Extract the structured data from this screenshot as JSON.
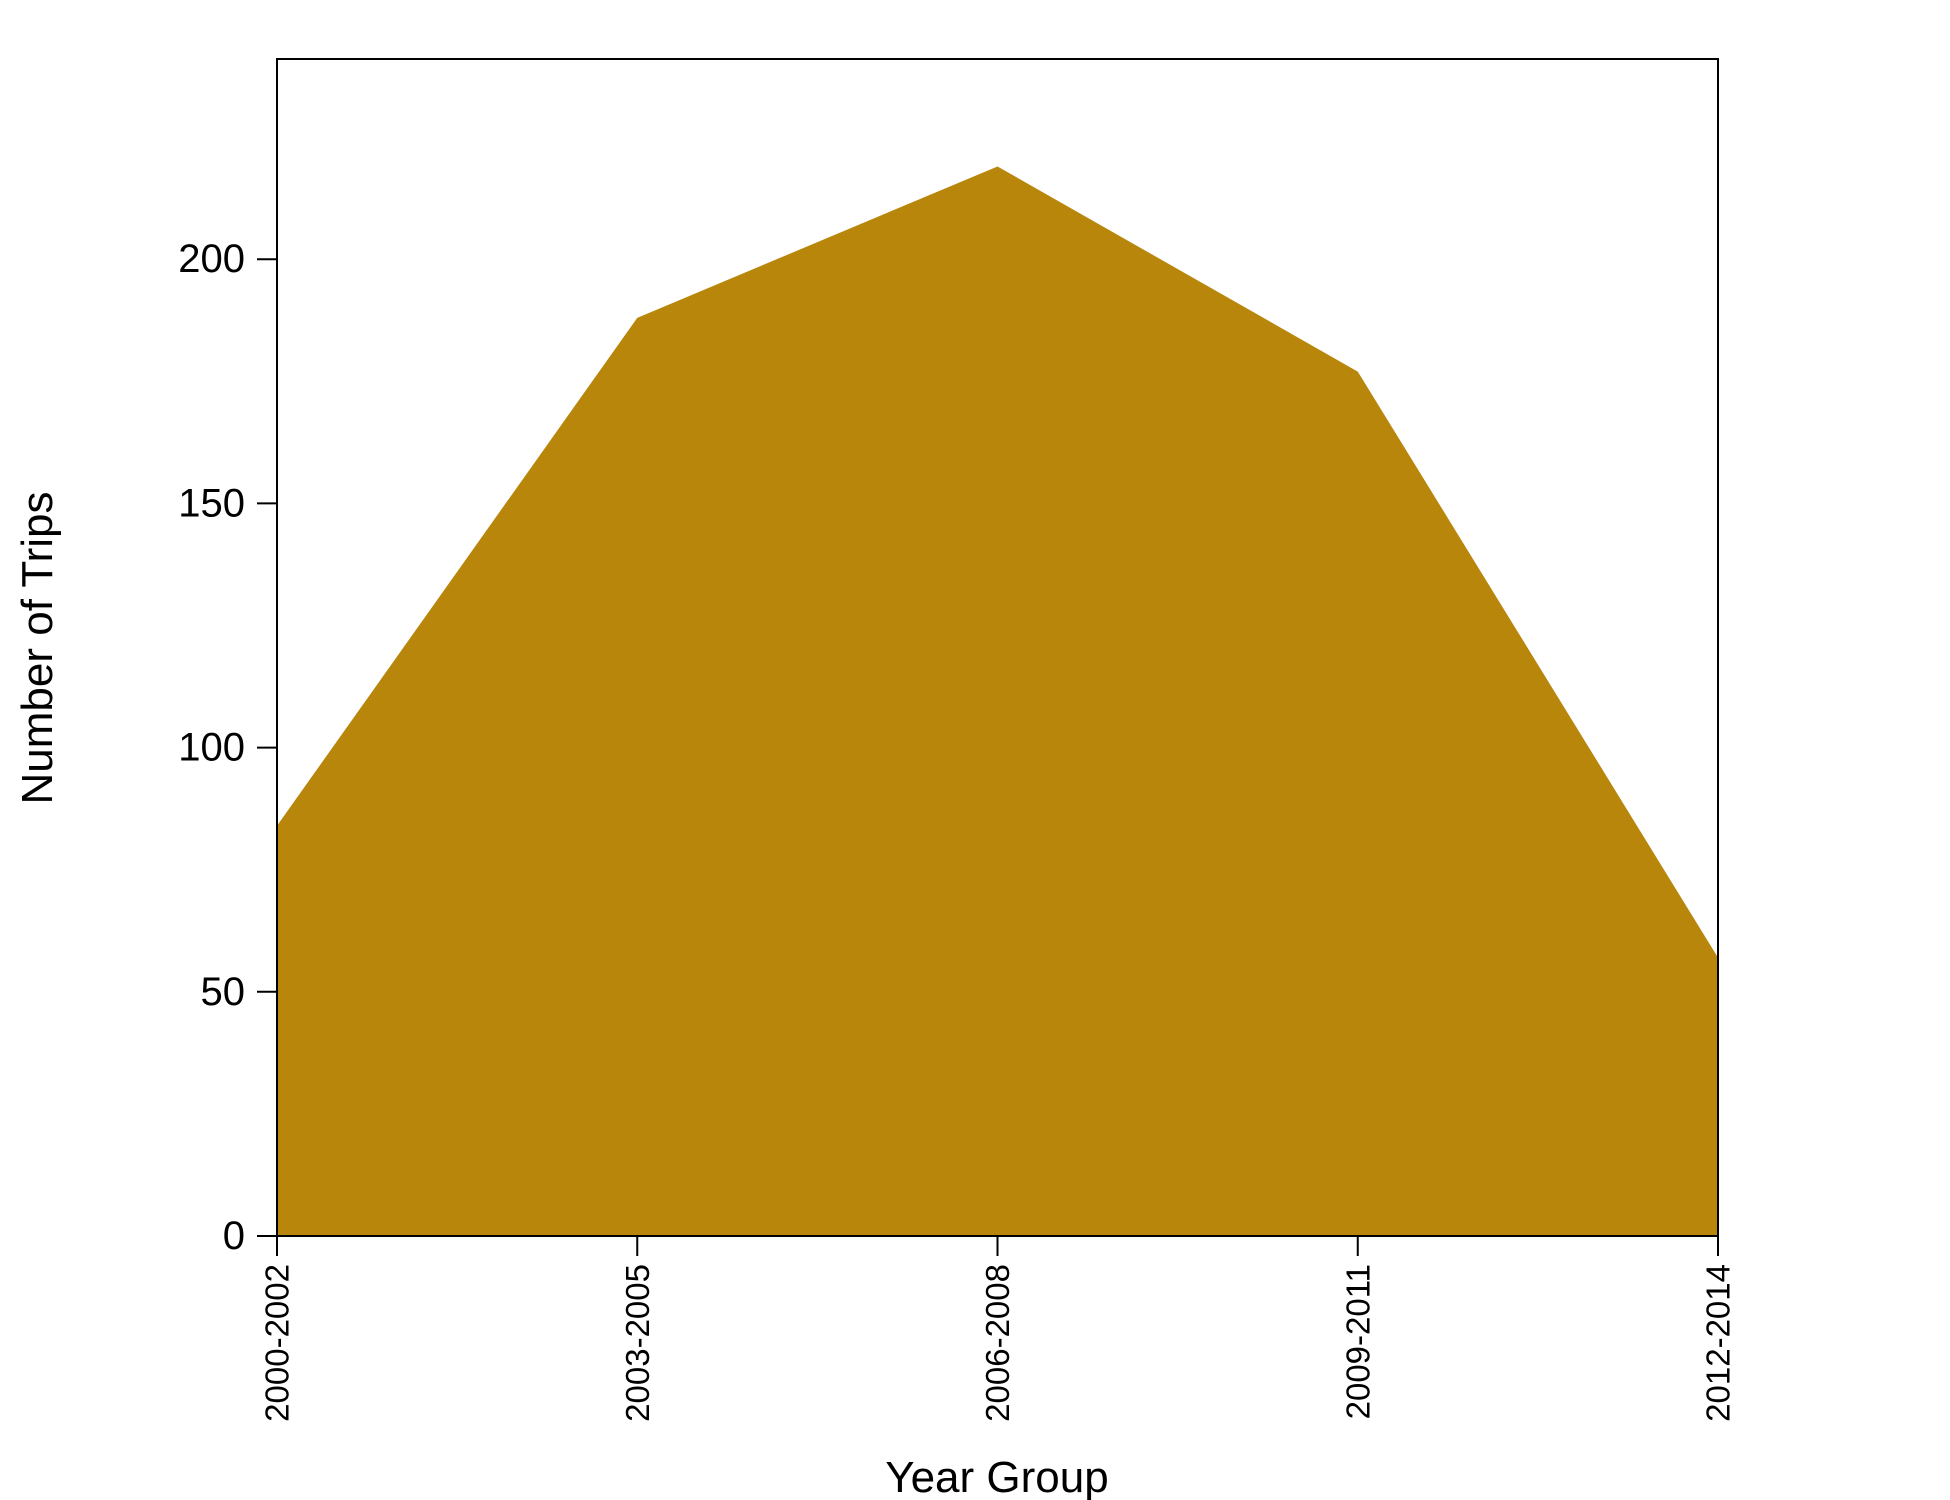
{
  "chart_data": {
    "type": "area",
    "title": "",
    "xlabel": "Year Group",
    "ylabel": "Number of Trips",
    "categories": [
      "2000-2002",
      "2003-2005",
      "2006-2008",
      "2009-2011",
      "2012-2014"
    ],
    "values": [
      84,
      188,
      219,
      177,
      57
    ],
    "ylim": [
      0,
      241
    ],
    "yticks": [
      0,
      50,
      100,
      150,
      200
    ],
    "fill_color": "#B8860B",
    "grid": false,
    "legend": "none"
  }
}
